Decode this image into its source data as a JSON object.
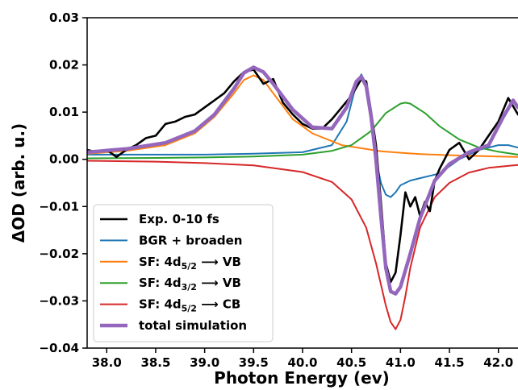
{
  "chart_data": {
    "type": "line",
    "xlabel": "Photon Energy (ev)",
    "ylabel": "ΔOD (arb. u.)",
    "xlim": [
      37.8,
      42.2
    ],
    "ylim": [
      -0.04,
      0.03
    ],
    "xticks": [
      "38.0",
      "38.5",
      "39.0",
      "39.5",
      "40.0",
      "40.5",
      "41.0",
      "41.5",
      "42.0"
    ],
    "xtick_values": [
      38.0,
      38.5,
      39.0,
      39.5,
      40.0,
      40.5,
      41.0,
      41.5,
      42.0
    ],
    "yticks": [
      "0.03",
      "0.02",
      "0.01",
      "0.00",
      "−0.01",
      "−0.02",
      "−0.03",
      "−0.04"
    ],
    "ytick_values": [
      0.03,
      0.02,
      0.01,
      0.0,
      -0.01,
      -0.02,
      -0.03,
      -0.04
    ],
    "grid": false,
    "legend_position": "bottom-left",
    "series": [
      {
        "name": "Exp. 0-10 fs",
        "color": "#000000",
        "x": [
          37.8,
          37.9,
          38.0,
          38.1,
          38.2,
          38.3,
          38.4,
          38.5,
          38.6,
          38.7,
          38.8,
          38.9,
          39.0,
          39.1,
          39.2,
          39.3,
          39.4,
          39.5,
          39.6,
          39.7,
          39.8,
          39.9,
          40.0,
          40.1,
          40.2,
          40.3,
          40.4,
          40.5,
          40.6,
          40.65,
          40.7,
          40.75,
          40.8,
          40.85,
          40.9,
          40.95,
          41.0,
          41.05,
          41.1,
          41.15,
          41.2,
          41.25,
          41.3,
          41.35,
          41.4,
          41.45,
          41.5,
          41.6,
          41.7,
          41.8,
          41.9,
          42.0,
          42.1,
          42.2
        ],
        "y": [
          0.002,
          0.0015,
          0.002,
          0.0005,
          0.002,
          0.003,
          0.0045,
          0.005,
          0.0075,
          0.008,
          0.009,
          0.0095,
          0.011,
          0.0125,
          0.014,
          0.0165,
          0.0185,
          0.019,
          0.016,
          0.017,
          0.012,
          0.0095,
          0.0075,
          0.0065,
          0.0065,
          0.0085,
          0.011,
          0.0135,
          0.017,
          0.0165,
          0.01,
          0.003,
          -0.009,
          -0.022,
          -0.026,
          -0.024,
          -0.016,
          -0.007,
          -0.01,
          -0.008,
          -0.012,
          -0.009,
          -0.011,
          -0.0045,
          -0.002,
          0.0,
          0.002,
          0.0035,
          0.0,
          0.002,
          0.005,
          0.008,
          0.013,
          0.0095
        ]
      },
      {
        "name": "BGR + broaden",
        "color": "#1f77b4",
        "x": [
          37.8,
          38.5,
          39.0,
          39.5,
          40.0,
          40.3,
          40.45,
          40.55,
          40.6,
          40.65,
          40.7,
          40.75,
          40.8,
          40.85,
          40.9,
          40.95,
          41.0,
          41.1,
          41.2,
          41.3,
          41.4,
          41.5,
          41.6,
          41.7,
          41.8,
          41.9,
          42.0,
          42.1,
          42.2
        ],
        "y": [
          0.001,
          0.001,
          0.001,
          0.0012,
          0.0015,
          0.003,
          0.008,
          0.016,
          0.018,
          0.016,
          0.008,
          0.0,
          -0.005,
          -0.0075,
          -0.008,
          -0.007,
          -0.0055,
          -0.0045,
          -0.004,
          -0.0035,
          -0.003,
          -0.0015,
          0.0,
          0.001,
          0.002,
          0.0025,
          0.003,
          0.003,
          0.0025
        ]
      },
      {
        "name": "SF: 4d5/2 ⟶ VB",
        "color": "#ff7f0e",
        "x": [
          37.8,
          38.2,
          38.6,
          38.9,
          39.1,
          39.3,
          39.4,
          39.5,
          39.6,
          39.7,
          39.9,
          40.1,
          40.4,
          40.8,
          41.2,
          41.6,
          42.0,
          42.2
        ],
        "y": [
          0.0012,
          0.0018,
          0.003,
          0.0055,
          0.009,
          0.014,
          0.0168,
          0.0178,
          0.0168,
          0.014,
          0.0085,
          0.0055,
          0.003,
          0.0017,
          0.0011,
          0.0008,
          0.0006,
          0.0005
        ]
      },
      {
        "name": "SF: 4d3/2 ⟶ VB",
        "color": "#2ca02c",
        "x": [
          37.8,
          38.5,
          39.0,
          39.5,
          40.0,
          40.3,
          40.5,
          40.7,
          40.85,
          41.0,
          41.05,
          41.1,
          41.25,
          41.4,
          41.6,
          41.8,
          42.0,
          42.2
        ],
        "y": [
          0.0002,
          0.0003,
          0.0004,
          0.0006,
          0.001,
          0.0018,
          0.003,
          0.006,
          0.0098,
          0.0118,
          0.012,
          0.0118,
          0.0098,
          0.007,
          0.0042,
          0.0025,
          0.0016,
          0.001
        ]
      },
      {
        "name": "SF: 4d5/2 ⟶ CB",
        "color": "#d62728",
        "x": [
          37.8,
          38.5,
          39.0,
          39.5,
          40.0,
          40.3,
          40.5,
          40.65,
          40.75,
          40.85,
          40.9,
          40.95,
          41.0,
          41.05,
          41.1,
          41.2,
          41.35,
          41.5,
          41.7,
          41.9,
          42.2
        ],
        "y": [
          -0.0003,
          -0.0005,
          -0.0008,
          -0.0013,
          -0.0027,
          -0.0048,
          -0.0085,
          -0.0145,
          -0.022,
          -0.031,
          -0.0345,
          -0.036,
          -0.034,
          -0.029,
          -0.023,
          -0.0145,
          -0.008,
          -0.005,
          -0.0028,
          -0.0018,
          -0.0012
        ]
      },
      {
        "name": "total simulation",
        "color": "#9467bd",
        "x": [
          37.8,
          38.2,
          38.6,
          38.9,
          39.1,
          39.3,
          39.4,
          39.5,
          39.6,
          39.7,
          39.9,
          40.1,
          40.3,
          40.45,
          40.55,
          40.6,
          40.65,
          40.7,
          40.75,
          40.8,
          40.85,
          40.9,
          40.95,
          41.0,
          41.1,
          41.2,
          41.35,
          41.5,
          41.7,
          41.9,
          42.05,
          42.15,
          42.2
        ],
        "y": [
          0.0015,
          0.0022,
          0.0035,
          0.006,
          0.0095,
          0.015,
          0.0183,
          0.0195,
          0.0185,
          0.016,
          0.0105,
          0.0068,
          0.0065,
          0.011,
          0.0165,
          0.0175,
          0.0155,
          0.009,
          0.0,
          -0.012,
          -0.023,
          -0.028,
          -0.0285,
          -0.027,
          -0.02,
          -0.0125,
          -0.0045,
          -0.001,
          0.0015,
          0.003,
          0.009,
          0.0125,
          0.011
        ]
      }
    ],
    "legend": [
      {
        "base": "Exp. 0-10 fs",
        "sub": "",
        "tail": "",
        "color": "#000000"
      },
      {
        "base": "BGR + broaden",
        "sub": "",
        "tail": "",
        "color": "#1f77b4"
      },
      {
        "base": "SF: 4d",
        "sub": "5/2",
        "tail": " ⟶ VB",
        "color": "#ff7f0e"
      },
      {
        "base": "SF: 4d",
        "sub": "3/2",
        "tail": " ⟶ VB",
        "color": "#2ca02c"
      },
      {
        "base": "SF: 4d",
        "sub": "5/2",
        "tail": " ⟶ CB",
        "color": "#d62728"
      },
      {
        "base": "total simulation",
        "sub": "",
        "tail": "",
        "color": "#9467bd"
      }
    ]
  }
}
